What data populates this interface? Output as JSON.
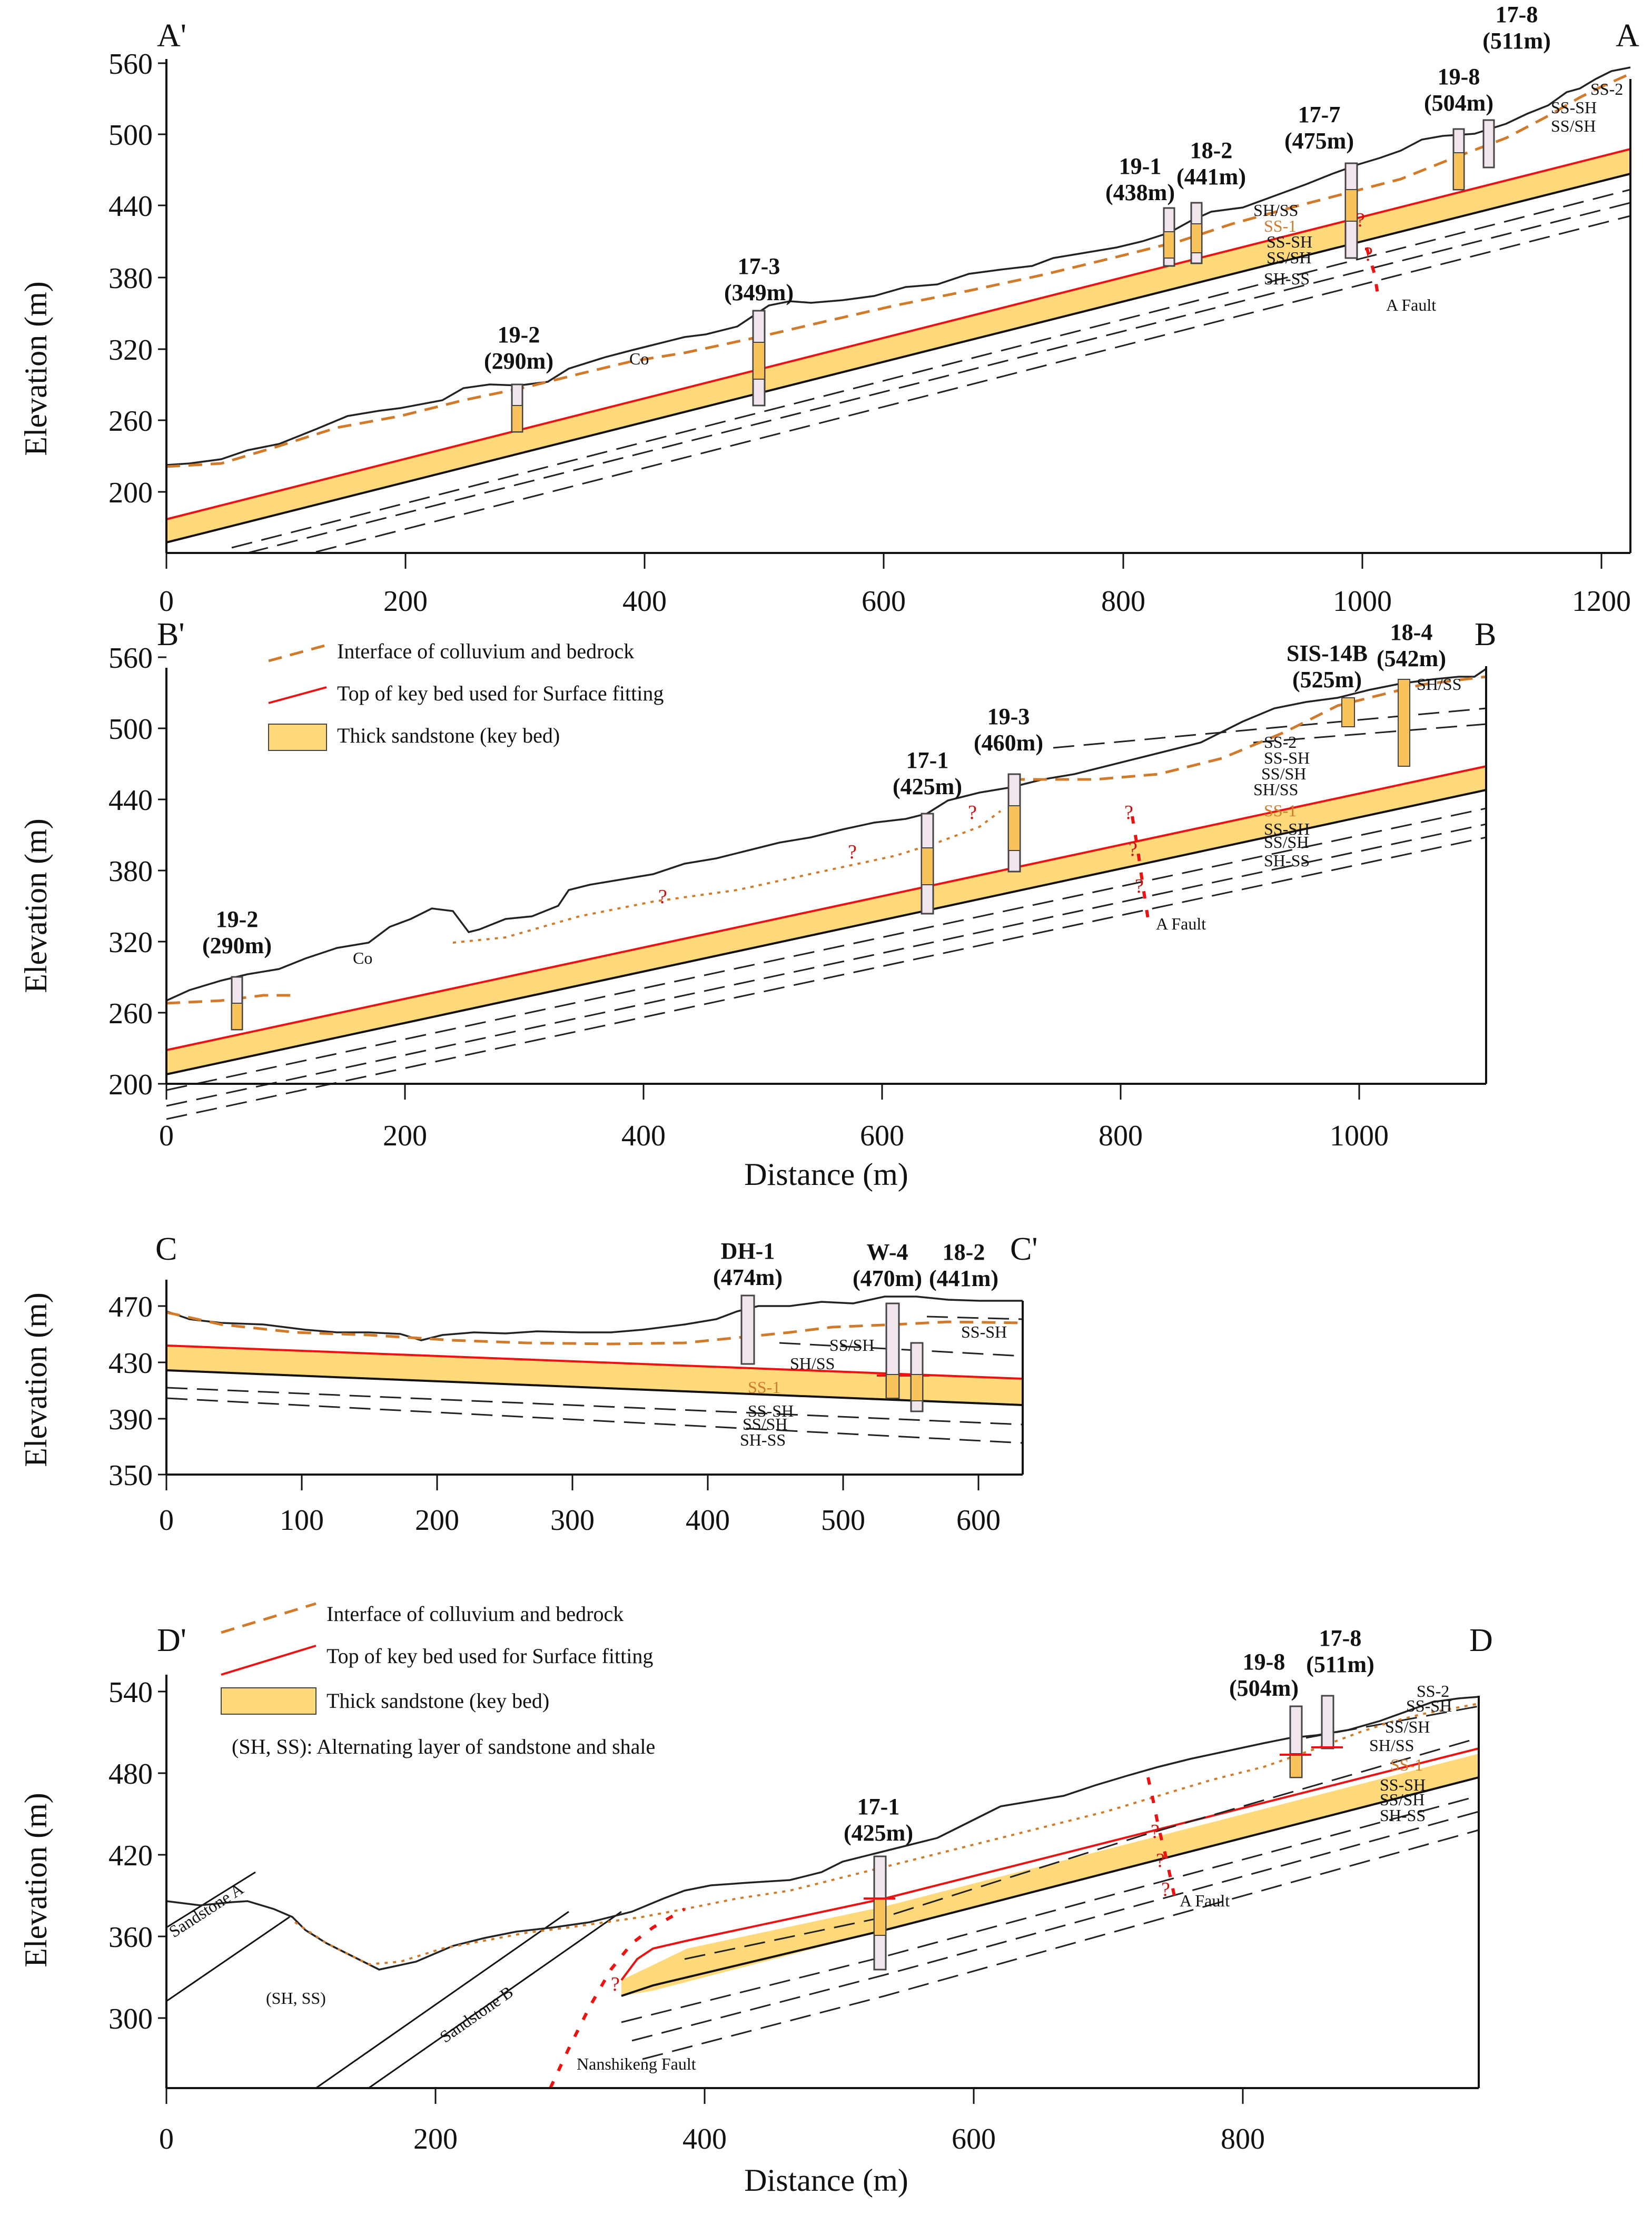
{
  "panelA": {
    "left_label": "A'",
    "right_label": "A",
    "y_label": "Elevation (m)",
    "y_ticks": [
      "560",
      "500",
      "440",
      "380",
      "320",
      "260",
      "200"
    ],
    "x_ticks": [
      "0",
      "200",
      "400",
      "600",
      "800",
      "1000",
      "1200"
    ],
    "boreholes": [
      {
        "name": "19-2",
        "elev": "(290m)"
      },
      {
        "name": "17-3",
        "elev": "(349m)"
      },
      {
        "name": "19-1",
        "elev": "(438m)"
      },
      {
        "name": "18-2",
        "elev": "(441m)"
      },
      {
        "name": "17-7",
        "elev": "(475m)"
      },
      {
        "name": "19-8",
        "elev": "(504m)"
      },
      {
        "name": "17-8",
        "elev": "(511m)"
      }
    ],
    "co_label": "Co",
    "fault_label": "A Fault",
    "layers": [
      "SH/SS",
      "SS-1",
      "SS-SH",
      "SS/SH",
      "SH-SS",
      "SS-2",
      "SS-SH",
      "SS/SH"
    ]
  },
  "panelB": {
    "left_label": "B'",
    "right_label": "B",
    "y_label": "Elevation (m)",
    "x_label": "Distance (m)",
    "y_ticks": [
      "560",
      "500",
      "440",
      "380",
      "320",
      "260",
      "200"
    ],
    "x_ticks": [
      "0",
      "200",
      "400",
      "600",
      "800",
      "1000"
    ],
    "legend": [
      "Interface of colluvium and bedrock",
      "Top of key bed used for Surface fitting",
      "Thick sandstone (key bed)"
    ],
    "boreholes": [
      {
        "name": "19-2",
        "elev": "(290m)"
      },
      {
        "name": "17-1",
        "elev": "(425m)"
      },
      {
        "name": "19-3",
        "elev": "(460m)"
      },
      {
        "name": "SIS-14B",
        "elev": "(525m)"
      },
      {
        "name": "18-4",
        "elev": "(542m)"
      }
    ],
    "co_label": "Co",
    "fault_label": "A Fault",
    "layers": [
      "SS-2",
      "SS-SH",
      "SS/SH",
      "SH/SS",
      "SS-1",
      "SS-SH",
      "SS/SH",
      "SH-SS",
      "SH/SS"
    ]
  },
  "panelC": {
    "left_label": "C",
    "right_label": "C'",
    "y_label": "Elevation (m)",
    "y_ticks": [
      "470",
      "430",
      "390",
      "350"
    ],
    "x_ticks": [
      "0",
      "100",
      "200",
      "300",
      "400",
      "500",
      "600"
    ],
    "boreholes": [
      {
        "name": "DH-1",
        "elev": "(474m)"
      },
      {
        "name": "W-4",
        "elev": "(470m)"
      },
      {
        "name": "18-2",
        "elev": "(441m)"
      }
    ],
    "layers": [
      "SS-SH",
      "SS/SH",
      "SH/SS",
      "SS-1",
      "SS-SH",
      "SS/SH",
      "SH-SS"
    ]
  },
  "panelD": {
    "left_label": "D'",
    "right_label": "D",
    "y_label": "Elevation (m)",
    "x_label": "Distance (m)",
    "y_ticks": [
      "540",
      "480",
      "420",
      "360",
      "300"
    ],
    "x_ticks": [
      "0",
      "200",
      "400",
      "600",
      "800"
    ],
    "legend": [
      "Interface of colluvium and bedrock",
      "Top of key bed used for Surface fitting",
      "Thick sandstone (key bed)",
      "(SH, SS): Alternating layer of sandstone and shale"
    ],
    "boreholes": [
      {
        "name": "17-1",
        "elev": "(425m)"
      },
      {
        "name": "19-8",
        "elev": "(504m)"
      },
      {
        "name": "17-8",
        "elev": "(511m)"
      }
    ],
    "sandstone_a": "Sandstone A",
    "sandstone_b": "Sandstone B",
    "sh_ss": "(SH, SS)",
    "fault_label": "A Fault",
    "nanshikeng": "Nanshikeng Fault",
    "layers": [
      "SS-2",
      "SS-SH",
      "SS/SH",
      "SH/SS",
      "SS-1",
      "SS-SH",
      "SS/SH",
      "SH-SS"
    ]
  },
  "question_mark": "?"
}
